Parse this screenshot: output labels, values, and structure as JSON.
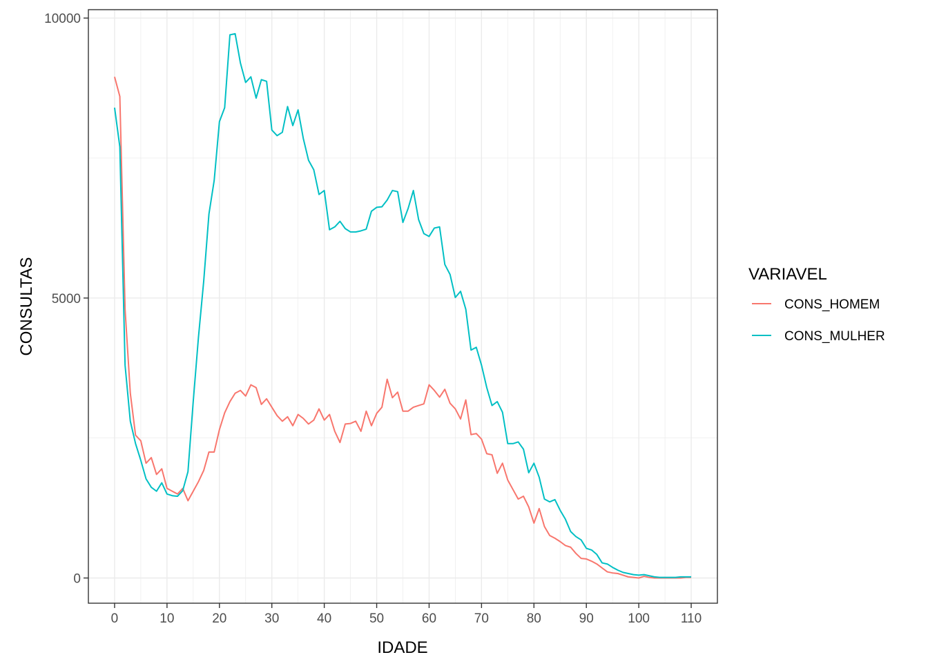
{
  "chart_data": {
    "type": "line",
    "xlabel": "IDADE",
    "ylabel": "CONSULTAS",
    "xlim": [
      -5,
      115
    ],
    "ylim": [
      -450,
      10150
    ],
    "x_ticks": [
      0,
      10,
      20,
      30,
      40,
      50,
      60,
      70,
      80,
      90,
      100,
      110
    ],
    "y_ticks": [
      0,
      5000,
      10000
    ],
    "grid": true,
    "legend": {
      "title": "VARIAVEL",
      "position": "right"
    },
    "x": [
      0,
      1,
      2,
      3,
      4,
      5,
      6,
      7,
      8,
      9,
      10,
      11,
      12,
      13,
      14,
      15,
      16,
      17,
      18,
      19,
      20,
      21,
      22,
      23,
      24,
      25,
      26,
      27,
      28,
      29,
      30,
      31,
      32,
      33,
      34,
      35,
      36,
      37,
      38,
      39,
      40,
      41,
      42,
      43,
      44,
      45,
      46,
      47,
      48,
      49,
      50,
      51,
      52,
      53,
      54,
      55,
      56,
      57,
      58,
      59,
      60,
      61,
      62,
      63,
      64,
      65,
      66,
      67,
      68,
      69,
      70,
      71,
      72,
      73,
      74,
      75,
      76,
      77,
      78,
      79,
      80,
      81,
      82,
      83,
      84,
      85,
      86,
      87,
      88,
      89,
      90,
      91,
      92,
      93,
      94,
      95,
      96,
      97,
      98,
      99,
      100,
      101,
      102,
      103,
      104,
      105,
      106,
      107,
      108,
      109,
      110
    ],
    "series": [
      {
        "name": "CONS_HOMEM",
        "color": "#F8766D",
        "values": [
          8950,
          8600,
          4800,
          3300,
          2550,
          2450,
          2050,
          2150,
          1850,
          1950,
          1600,
          1550,
          1500,
          1600,
          1380,
          1550,
          1720,
          1920,
          2250,
          2250,
          2650,
          2950,
          3150,
          3300,
          3350,
          3250,
          3450,
          3400,
          3100,
          3200,
          3050,
          2900,
          2800,
          2880,
          2720,
          2920,
          2850,
          2750,
          2820,
          3020,
          2820,
          2920,
          2620,
          2420,
          2750,
          2760,
          2800,
          2620,
          2980,
          2720,
          2940,
          3050,
          3550,
          3220,
          3320,
          2980,
          2980,
          3050,
          3080,
          3110,
          3450,
          3350,
          3230,
          3370,
          3120,
          3020,
          2840,
          3180,
          2560,
          2580,
          2480,
          2220,
          2200,
          1870,
          2050,
          1750,
          1580,
          1410,
          1460,
          1270,
          980,
          1240,
          920,
          760,
          710,
          650,
          580,
          550,
          440,
          350,
          340,
          300,
          250,
          180,
          110,
          90,
          80,
          50,
          20,
          10,
          0,
          30,
          10,
          0,
          0,
          0,
          0,
          0,
          0,
          10,
          10
        ]
      },
      {
        "name": "CONS_MULHER",
        "color": "#00BFC4",
        "values": [
          8400,
          7700,
          3800,
          2800,
          2400,
          2100,
          1770,
          1620,
          1550,
          1700,
          1500,
          1470,
          1460,
          1560,
          1900,
          3150,
          4300,
          5300,
          6500,
          7100,
          8150,
          8400,
          9700,
          9720,
          9200,
          8850,
          8950,
          8570,
          8900,
          8870,
          8000,
          7900,
          7960,
          8420,
          8080,
          8360,
          7850,
          7460,
          7290,
          6850,
          6920,
          6220,
          6270,
          6370,
          6240,
          6180,
          6180,
          6200,
          6230,
          6550,
          6620,
          6630,
          6750,
          6920,
          6900,
          6350,
          6600,
          6920,
          6400,
          6150,
          6100,
          6250,
          6270,
          5600,
          5420,
          5010,
          5120,
          4800,
          4070,
          4120,
          3800,
          3400,
          3080,
          3150,
          2960,
          2400,
          2400,
          2430,
          2300,
          1880,
          2050,
          1800,
          1410,
          1360,
          1400,
          1210,
          1050,
          830,
          740,
          680,
          530,
          500,
          420,
          270,
          250,
          190,
          140,
          100,
          80,
          60,
          50,
          60,
          40,
          20,
          10,
          10,
          10,
          10,
          20,
          20,
          20
        ]
      }
    ]
  }
}
